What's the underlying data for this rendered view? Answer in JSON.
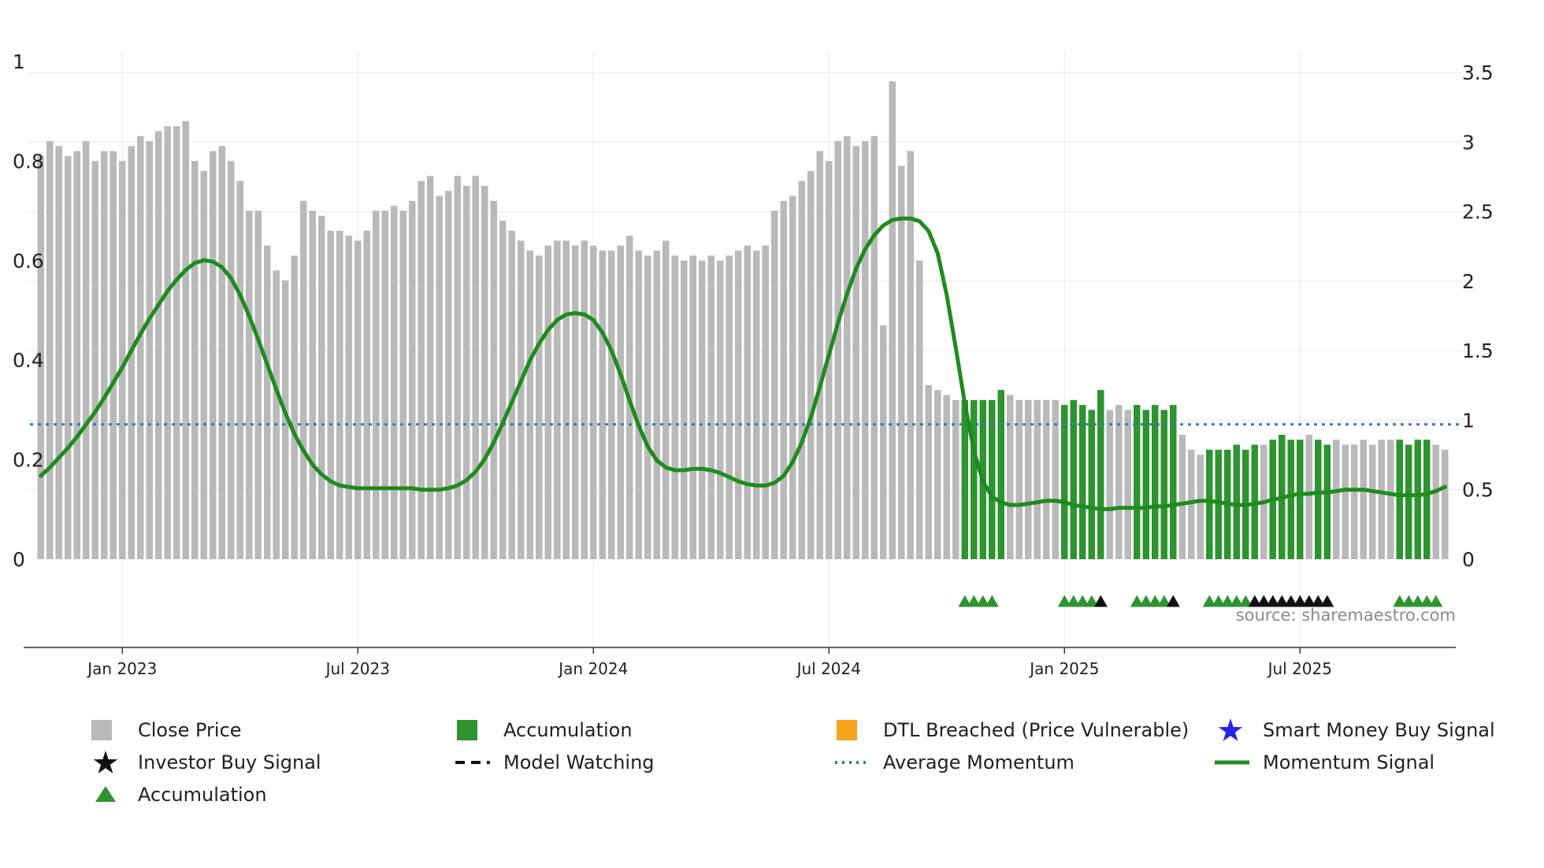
{
  "source_note": "source: sharemaestro.com",
  "colors": {
    "close_bar": "#b9b9b9",
    "accumulation_bar": "#2d9430",
    "momentum_line": "#1e8b1e",
    "average_momentum": "#3a78ad",
    "dtl_breached": "#f7a51f",
    "smart_money_star": "#2424e8",
    "investor_black": "#111111",
    "grid": "#e9e9ee",
    "axis": "#333333",
    "tick_label": "#222222",
    "source_text": "#8b8b8b"
  },
  "axes": {
    "left_ticks": [
      "0",
      "0.2",
      "0.4",
      "0.6",
      "0.8",
      "1"
    ],
    "right_ticks": [
      "0",
      "0.5",
      "1",
      "1.5",
      "2",
      "2.5",
      "3",
      "3.5"
    ],
    "x_ticks": [
      {
        "label": "Jan 2023",
        "week": 9
      },
      {
        "label": "Jul 2023",
        "week": 35
      },
      {
        "label": "Jan 2024",
        "week": 61
      },
      {
        "label": "Jul 2024",
        "week": 87
      },
      {
        "label": "Jan 2025",
        "week": 113
      },
      {
        "label": "Jul 2025",
        "week": 139
      }
    ]
  },
  "legend": {
    "items": [
      {
        "label": "Close Price",
        "swatch": "square",
        "color": "#b9b9b9",
        "name": "legend-close-price"
      },
      {
        "label": "Accumulation",
        "swatch": "square",
        "color": "#2d9430",
        "name": "legend-accumulation-bar"
      },
      {
        "label": "DTL Breached (Price Vulnerable)",
        "swatch": "square",
        "color": "#f7a51f",
        "name": "legend-dtl-breached"
      },
      {
        "label": "Smart Money Buy Signal",
        "swatch": "star",
        "color": "#2424e8",
        "name": "legend-smart-money-buy-signal"
      },
      {
        "label": "Investor Buy Signal",
        "swatch": "star",
        "color": "#111111",
        "name": "legend-investor-buy-signal"
      },
      {
        "label": "Model Watching",
        "swatch": "dash",
        "color": "#111111",
        "name": "legend-model-watching"
      },
      {
        "label": "Average Momentum",
        "swatch": "dotted",
        "color": "#3a78ad",
        "name": "legend-average-momentum"
      },
      {
        "label": "Momentum Signal",
        "swatch": "line",
        "color": "#1e8b1e",
        "name": "legend-momentum-signal"
      },
      {
        "label": "Accumulation",
        "swatch": "triangle",
        "color": "#2d9430",
        "name": "legend-accumulation-marker"
      }
    ]
  },
  "chart_data": {
    "type": "bar+line",
    "title": "",
    "x_unit": "weekly",
    "x_range": [
      "Nov 2022",
      "Oct 2025"
    ],
    "left_axis": {
      "series": "Close Price (normalised)",
      "range": [
        0,
        1
      ]
    },
    "right_axis": {
      "series": "Momentum Signal",
      "range": [
        0,
        3.5
      ]
    },
    "average_momentum": 0.97,
    "close_price": [
      0.81,
      0.84,
      0.83,
      0.81,
      0.82,
      0.84,
      0.8,
      0.82,
      0.82,
      0.8,
      0.83,
      0.85,
      0.84,
      0.86,
      0.87,
      0.87,
      0.88,
      0.8,
      0.78,
      0.82,
      0.83,
      0.8,
      0.76,
      0.7,
      0.7,
      0.63,
      0.58,
      0.56,
      0.61,
      0.72,
      0.7,
      0.69,
      0.66,
      0.66,
      0.65,
      0.64,
      0.66,
      0.7,
      0.7,
      0.71,
      0.7,
      0.72,
      0.76,
      0.77,
      0.73,
      0.74,
      0.77,
      0.75,
      0.77,
      0.75,
      0.72,
      0.68,
      0.66,
      0.64,
      0.62,
      0.61,
      0.63,
      0.64,
      0.64,
      0.63,
      0.64,
      0.63,
      0.62,
      0.62,
      0.63,
      0.65,
      0.62,
      0.61,
      0.62,
      0.64,
      0.61,
      0.6,
      0.61,
      0.6,
      0.61,
      0.6,
      0.61,
      0.62,
      0.63,
      0.62,
      0.63,
      0.7,
      0.72,
      0.73,
      0.76,
      0.78,
      0.82,
      0.8,
      0.84,
      0.85,
      0.83,
      0.84,
      0.85,
      0.47,
      0.96,
      0.79,
      0.82,
      0.6,
      0.35,
      0.34,
      0.33,
      0.32,
      0.32,
      0.32,
      0.32,
      0.32,
      0.34,
      0.33,
      0.32,
      0.32,
      0.32,
      0.32,
      0.32,
      0.31,
      0.32,
      0.31,
      0.3,
      0.34,
      0.3,
      0.31,
      0.3,
      0.31,
      0.3,
      0.31,
      0.3,
      0.31,
      0.25,
      0.22,
      0.21,
      0.22,
      0.22,
      0.22,
      0.23,
      0.22,
      0.23,
      0.23,
      0.24,
      0.25,
      0.24,
      0.24,
      0.25,
      0.24,
      0.23,
      0.24,
      0.23,
      0.23,
      0.24,
      0.23,
      0.24,
      0.24,
      0.24,
      0.23,
      0.24,
      0.24,
      0.23,
      0.22
    ],
    "accumulation_bar_weeks": [
      102,
      103,
      104,
      105,
      106,
      113,
      114,
      115,
      116,
      117,
      121,
      122,
      123,
      124,
      125,
      129,
      130,
      131,
      132,
      133,
      134,
      136,
      137,
      138,
      139,
      141,
      142,
      150,
      151,
      152,
      153
    ],
    "momentum_signal": [
      0.6,
      0.66,
      0.73,
      0.8,
      0.88,
      0.97,
      1.06,
      1.16,
      1.27,
      1.38,
      1.5,
      1.62,
      1.73,
      1.83,
      1.93,
      2.01,
      2.08,
      2.13,
      2.15,
      2.14,
      2.1,
      2.02,
      1.9,
      1.75,
      1.58,
      1.4,
      1.22,
      1.05,
      0.9,
      0.78,
      0.68,
      0.61,
      0.56,
      0.53,
      0.52,
      0.51,
      0.51,
      0.51,
      0.51,
      0.51,
      0.51,
      0.51,
      0.5,
      0.5,
      0.5,
      0.51,
      0.53,
      0.57,
      0.63,
      0.72,
      0.84,
      0.98,
      1.13,
      1.28,
      1.43,
      1.55,
      1.65,
      1.72,
      1.76,
      1.77,
      1.76,
      1.72,
      1.63,
      1.5,
      1.33,
      1.14,
      0.96,
      0.81,
      0.71,
      0.66,
      0.64,
      0.64,
      0.65,
      0.65,
      0.64,
      0.62,
      0.59,
      0.56,
      0.54,
      0.53,
      0.53,
      0.55,
      0.6,
      0.7,
      0.84,
      1.02,
      1.24,
      1.47,
      1.7,
      1.91,
      2.09,
      2.23,
      2.33,
      2.4,
      2.44,
      2.45,
      2.45,
      2.43,
      2.36,
      2.2,
      1.9,
      1.52,
      1.12,
      0.78,
      0.56,
      0.45,
      0.41,
      0.39,
      0.39,
      0.4,
      0.41,
      0.42,
      0.42,
      0.41,
      0.39,
      0.38,
      0.37,
      0.36,
      0.36,
      0.37,
      0.37,
      0.37,
      0.37,
      0.38,
      0.38,
      0.39,
      0.4,
      0.41,
      0.42,
      0.42,
      0.41,
      0.4,
      0.39,
      0.39,
      0.4,
      0.41,
      0.43,
      0.44,
      0.46,
      0.47,
      0.47,
      0.48,
      0.48,
      0.49,
      0.5,
      0.5,
      0.5,
      0.49,
      0.48,
      0.47,
      0.46,
      0.46,
      0.46,
      0.47,
      0.49,
      0.52
    ],
    "accumulation_marker_weeks": [
      102,
      103,
      104,
      105,
      113,
      114,
      115,
      116,
      121,
      122,
      123,
      124,
      129,
      130,
      131,
      132,
      133,
      150,
      151,
      152,
      153,
      154
    ],
    "investor_buy_marker_weeks": [
      117,
      125,
      134,
      135,
      136,
      137,
      138,
      139,
      140,
      141,
      142
    ]
  }
}
